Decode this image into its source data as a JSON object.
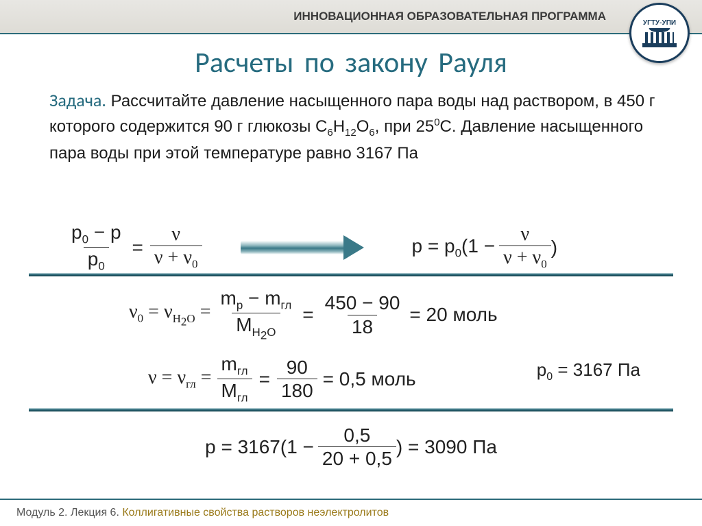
{
  "header": {
    "program_label": "ИННОВАЦИОННАЯ ОБРАЗОВАТЕЛЬНАЯ ПРОГРАММА",
    "logo_text": "УГТУ-УПИ"
  },
  "title": "Расчеты по закону Рауля",
  "problem": {
    "lead": "Задача.",
    "text_html": "Рассчитайте давление насыщенного пара воды над раствором, в 450 г которого содержится 90 г глюкозы C<sub>6</sub>H<sub>12</sub>O<sub>6</sub>, при 25<sup>0</sup>С. Давление насыщенного пара воды при этой температуре равно 3167 Па"
  },
  "formulas": {
    "raoult_left": {
      "lhs_num": "p<sub>0</sub> − p",
      "lhs_den": "p<sub>0</sub>",
      "rhs_num": "ν",
      "rhs_den": "ν + ν<sub>0</sub>"
    },
    "raoult_right": {
      "prefix": "p = p<sub>0</sub>(1 −",
      "frac_num": "ν",
      "frac_den": "ν + ν<sub>0</sub>",
      "suffix": ")"
    },
    "nu0": {
      "prefix": "ν<sub>0</sub> = ν<sub>H<sub>2</sub>O</sub> =",
      "f1_num": "m<sub>р</sub> − m<sub>гл</sub>",
      "f1_den": "M<sub>H<sub>2</sub>O</sub>",
      "f2_num": "450 − 90",
      "f2_den": "18",
      "result": "= 20 моль"
    },
    "nu": {
      "prefix": "ν = ν<sub>гл</sub> =",
      "f1_num": "m<sub>гл</sub>",
      "f1_den": "M<sub>гл</sub>",
      "f2_num": "90",
      "f2_den": "180",
      "result": "= 0,5 моль"
    },
    "p0_given": "p<sub>0</sub> = 3167 Па",
    "final": {
      "prefix": "p = 3167(1 −",
      "num": "0,5",
      "den": "20 + 0,5",
      "suffix": ") = 3090 Па"
    }
  },
  "footer": {
    "module": "Модуль 2. Лекция 6. ",
    "lecture_topic": "Коллигативные свойства растворов неэлектролитов"
  },
  "colors": {
    "accent": "#266b7f",
    "rule_dark": "#2c6b7a",
    "text": "#1c1c1c"
  }
}
